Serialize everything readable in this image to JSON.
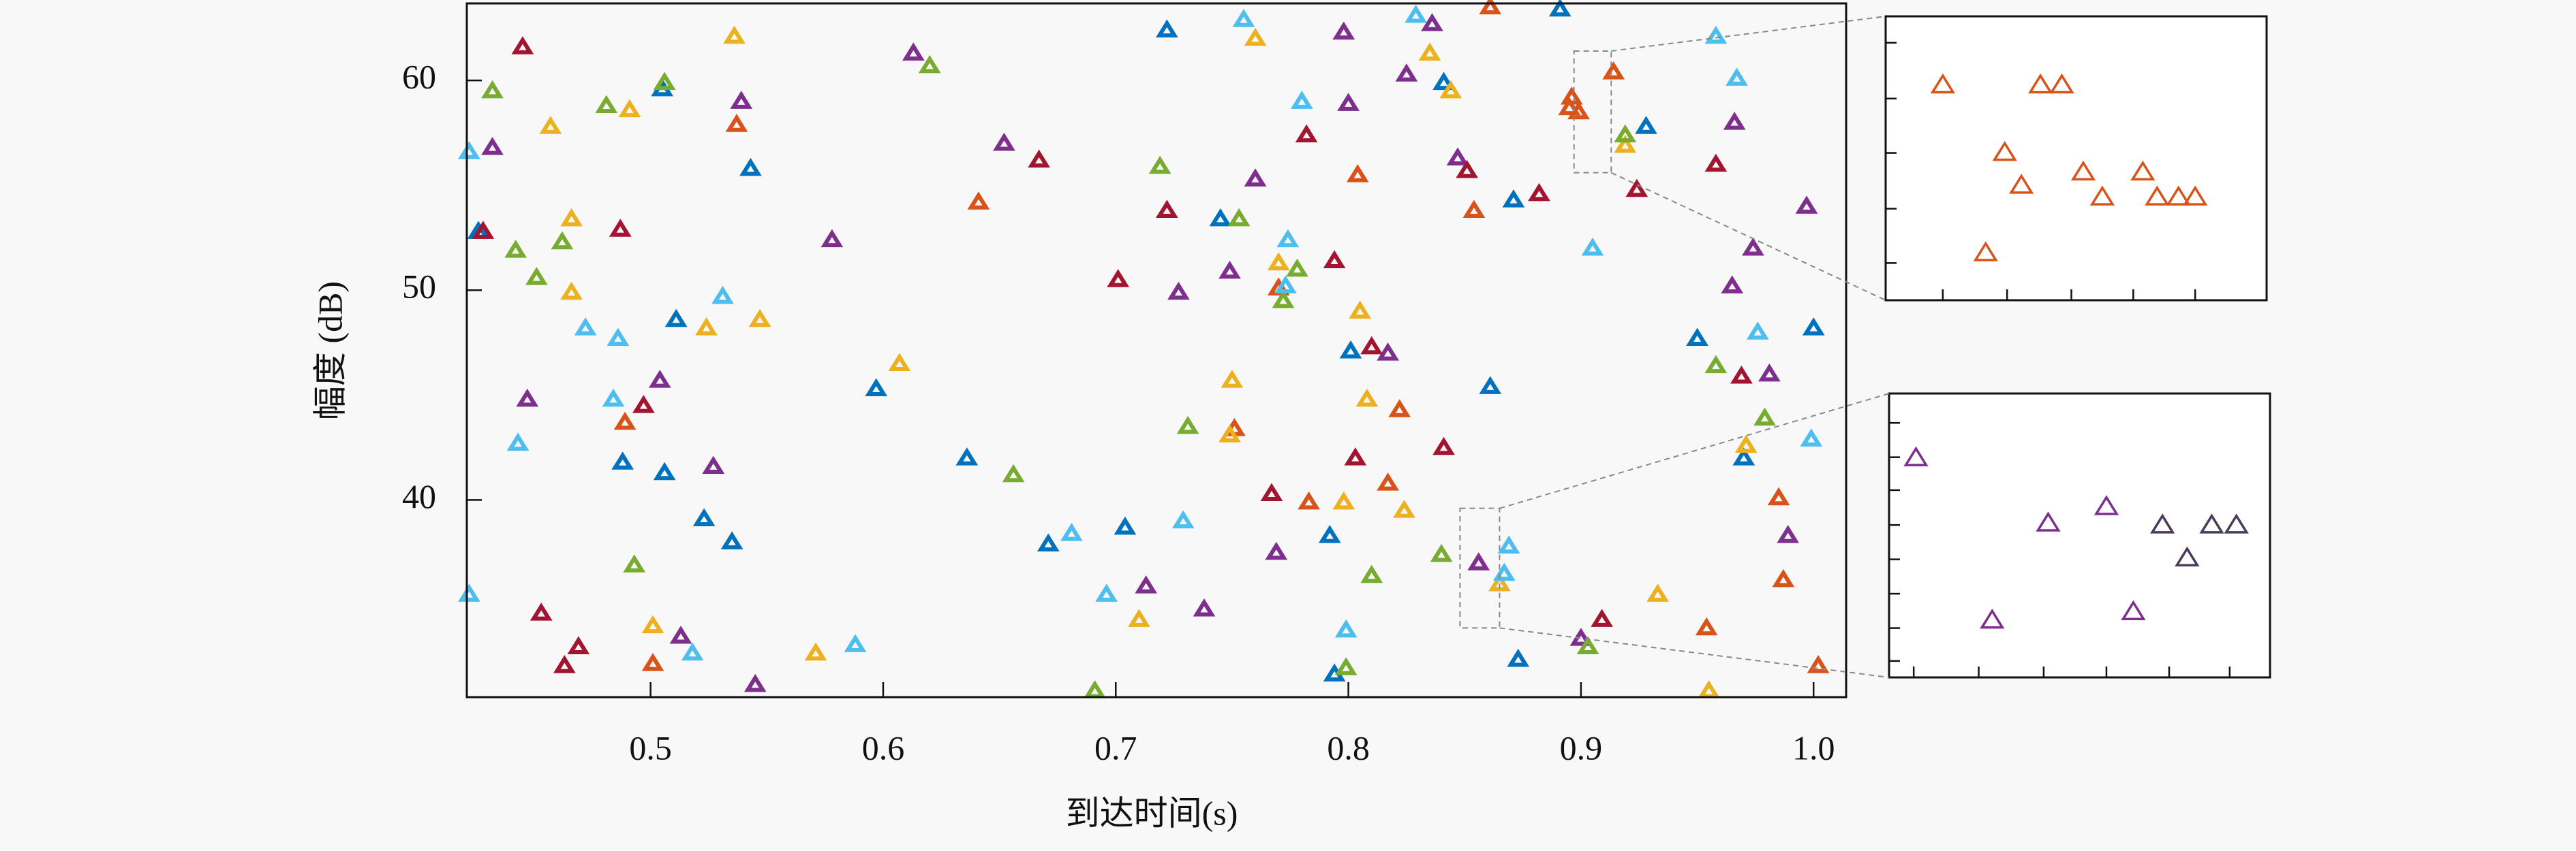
{
  "chart_data": [
    {
      "type": "scatter",
      "xlabel": "到达时间(s)",
      "ylabel": "幅度 (dB)",
      "xlim": [
        0.421,
        1.014
      ],
      "ylim": [
        30.6,
        63.67
      ],
      "xticks": [
        0.5,
        0.6,
        0.7,
        0.8,
        0.9,
        {
          "value": 1,
          "label": "1.0"
        }
      ],
      "yticks": [
        40,
        50,
        60
      ],
      "series": [
        {
          "color": "#0072BD",
          "x": [
            0.426,
            0.505,
            0.511,
            0.488,
            0.506,
            0.523,
            0.535,
            0.543,
            0.597,
            0.636,
            0.671,
            0.704,
            0.745,
            0.722,
            0.792,
            0.794,
            0.801,
            0.841,
            0.861,
            0.873,
            0.871,
            0.891,
            0.928,
            0.95,
            0.97,
            1.0
          ],
          "values": [
            52.8,
            59.6,
            48.6,
            41.8,
            41.3,
            39.1,
            38.0,
            55.8,
            45.3,
            42.0,
            37.9,
            38.7,
            53.4,
            62.4,
            38.3,
            31.7,
            47.1,
            59.9,
            45.4,
            32.4,
            54.3,
            63.4,
            57.8,
            47.7,
            42.0,
            48.2
          ]
        },
        {
          "color": "#D95319",
          "x": [
            0.501,
            0.537,
            0.641,
            0.861,
            0.914,
            0.854,
            0.804,
            0.77,
            0.751,
            0.783,
            0.817,
            0.822,
            0.954,
            1.002,
            0.985,
            0.987,
            0.899,
            0.489,
            0.896,
            0.895
          ],
          "values": [
            32.2,
            57.9,
            54.2,
            63.5,
            60.4,
            53.8,
            55.5,
            50.1,
            43.4,
            39.9,
            40.8,
            44.3,
            33.9,
            32.1,
            40.1,
            36.2,
            58.5,
            43.7,
            59.2,
            58.7
          ]
        },
        {
          "color": "#EDB120",
          "x": [
            0.536,
            0.491,
            0.457,
            0.466,
            0.466,
            0.524,
            0.547,
            0.607,
            0.571,
            0.501,
            0.71,
            0.75,
            0.749,
            0.77,
            0.805,
            0.808,
            0.824,
            0.798,
            0.835,
            0.844,
            0.865,
            0.933,
            0.971,
            0.955,
            0.76,
            0.919
          ],
          "values": [
            62.1,
            58.6,
            57.8,
            53.4,
            49.9,
            48.2,
            48.6,
            46.5,
            32.7,
            34.0,
            34.3,
            45.7,
            43.1,
            51.3,
            49.0,
            44.8,
            39.5,
            39.9,
            61.3,
            59.5,
            36.0,
            35.5,
            42.6,
            30.9,
            62.0,
            56.9
          ]
        },
        {
          "color": "#7E2F8E",
          "x": [
            0.432,
            0.447,
            0.504,
            0.527,
            0.539,
            0.578,
            0.613,
            0.652,
            0.713,
            0.727,
            0.738,
            0.749,
            0.76,
            0.769,
            0.798,
            0.8,
            0.817,
            0.825,
            0.836,
            0.847,
            0.856,
            0.9,
            0.965,
            0.966,
            0.974,
            0.981,
            0.989,
            0.997,
            0.513,
            0.545
          ],
          "values": [
            56.8,
            44.8,
            45.7,
            41.6,
            59.0,
            52.4,
            61.3,
            57.0,
            35.9,
            49.9,
            34.8,
            50.9,
            55.3,
            37.5,
            62.3,
            58.9,
            47.0,
            60.3,
            62.7,
            56.3,
            37.0,
            33.4,
            50.2,
            58.0,
            52.0,
            46.0,
            38.3,
            54.0,
            33.5,
            31.2
          ]
        },
        {
          "color": "#77AC30",
          "x": [
            0.432,
            0.442,
            0.462,
            0.451,
            0.506,
            0.481,
            0.493,
            0.62,
            0.656,
            0.691,
            0.719,
            0.731,
            0.753,
            0.772,
            0.778,
            0.81,
            0.799,
            0.84,
            0.903,
            0.919,
            0.958,
            0.979
          ],
          "values": [
            59.5,
            51.9,
            52.3,
            50.6,
            59.9,
            58.8,
            36.9,
            60.7,
            41.2,
            30.9,
            55.9,
            43.5,
            53.4,
            49.5,
            51.0,
            36.4,
            32.0,
            37.4,
            33.0,
            57.4,
            46.4,
            43.9
          ]
        },
        {
          "color": "#4DBEEE",
          "x": [
            0.422,
            0.422,
            0.443,
            0.472,
            0.486,
            0.484,
            0.531,
            0.518,
            0.588,
            0.681,
            0.696,
            0.729,
            0.773,
            0.774,
            0.78,
            0.799,
            0.829,
            0.867,
            0.869,
            0.905,
            0.958,
            0.967,
            0.976,
            0.999,
            0.755
          ],
          "values": [
            56.6,
            35.5,
            42.7,
            48.2,
            47.7,
            44.8,
            49.7,
            32.7,
            33.1,
            38.4,
            35.5,
            39.0,
            50.2,
            52.4,
            59.0,
            33.8,
            63.1,
            36.5,
            37.8,
            52.0,
            62.1,
            60.1,
            48.0,
            42.9,
            62.9
          ]
        },
        {
          "color": "#A2142F",
          "x": [
            0.445,
            0.487,
            0.497,
            0.453,
            0.469,
            0.463,
            0.667,
            0.701,
            0.722,
            0.767,
            0.782,
            0.794,
            0.803,
            0.81,
            0.841,
            0.851,
            0.882,
            0.924,
            0.909,
            0.969,
            0.958,
            0.428
          ],
          "values": [
            61.6,
            52.9,
            44.5,
            34.6,
            33.0,
            32.1,
            56.2,
            50.5,
            53.8,
            40.3,
            57.4,
            51.4,
            42.0,
            47.3,
            42.5,
            55.7,
            54.6,
            54.8,
            34.3,
            45.9,
            56.0,
            52.8
          ]
        }
      ]
    },
    {
      "type": "scatter",
      "xlim": [
        0.897,
        0.913
      ],
      "ylim": [
        55.6,
        61.4
      ],
      "xticks": [
        0.8994,
        0.9021,
        0.9048,
        0.9074,
        0.91
      ],
      "yticks": [
        56.36,
        57.47,
        58.61,
        59.72,
        60.86
      ],
      "series": [
        {
          "color": "#D95319",
          "x": [
            0.8994,
            0.9035,
            0.9044,
            0.902,
            0.9027,
            0.9053,
            0.9061,
            0.9078,
            0.9084,
            0.9093,
            0.91,
            0.9012
          ],
          "values": [
            60.0,
            60.0,
            60.0,
            58.62,
            57.95,
            58.22,
            57.71,
            58.22,
            57.71,
            57.71,
            57.71,
            56.57
          ]
        }
      ]
    },
    {
      "type": "scatter",
      "xlim": [
        0.848,
        0.865
      ],
      "ylim": [
        33.9,
        39.6
      ],
      "xticks": [
        0.8491,
        0.852,
        0.8549,
        0.8577,
        0.8605,
        0.8632
      ],
      "yticks": [
        34.23,
        34.89,
        35.58,
        36.27,
        36.96,
        37.66,
        38.32,
        39.01
      ],
      "series": [
        {
          "color": "#7E2F8E",
          "x": [
            0.8492,
            0.8526,
            0.8551,
            0.8577,
            0.8589
          ],
          "values": [
            38.31,
            35.05,
            37.0,
            37.33,
            35.22
          ]
        },
        {
          "color": "#4B3B5B",
          "x": [
            0.8602,
            0.8613,
            0.8624,
            0.8635
          ],
          "values": [
            36.96,
            36.3,
            36.96,
            36.96
          ]
        }
      ]
    }
  ]
}
